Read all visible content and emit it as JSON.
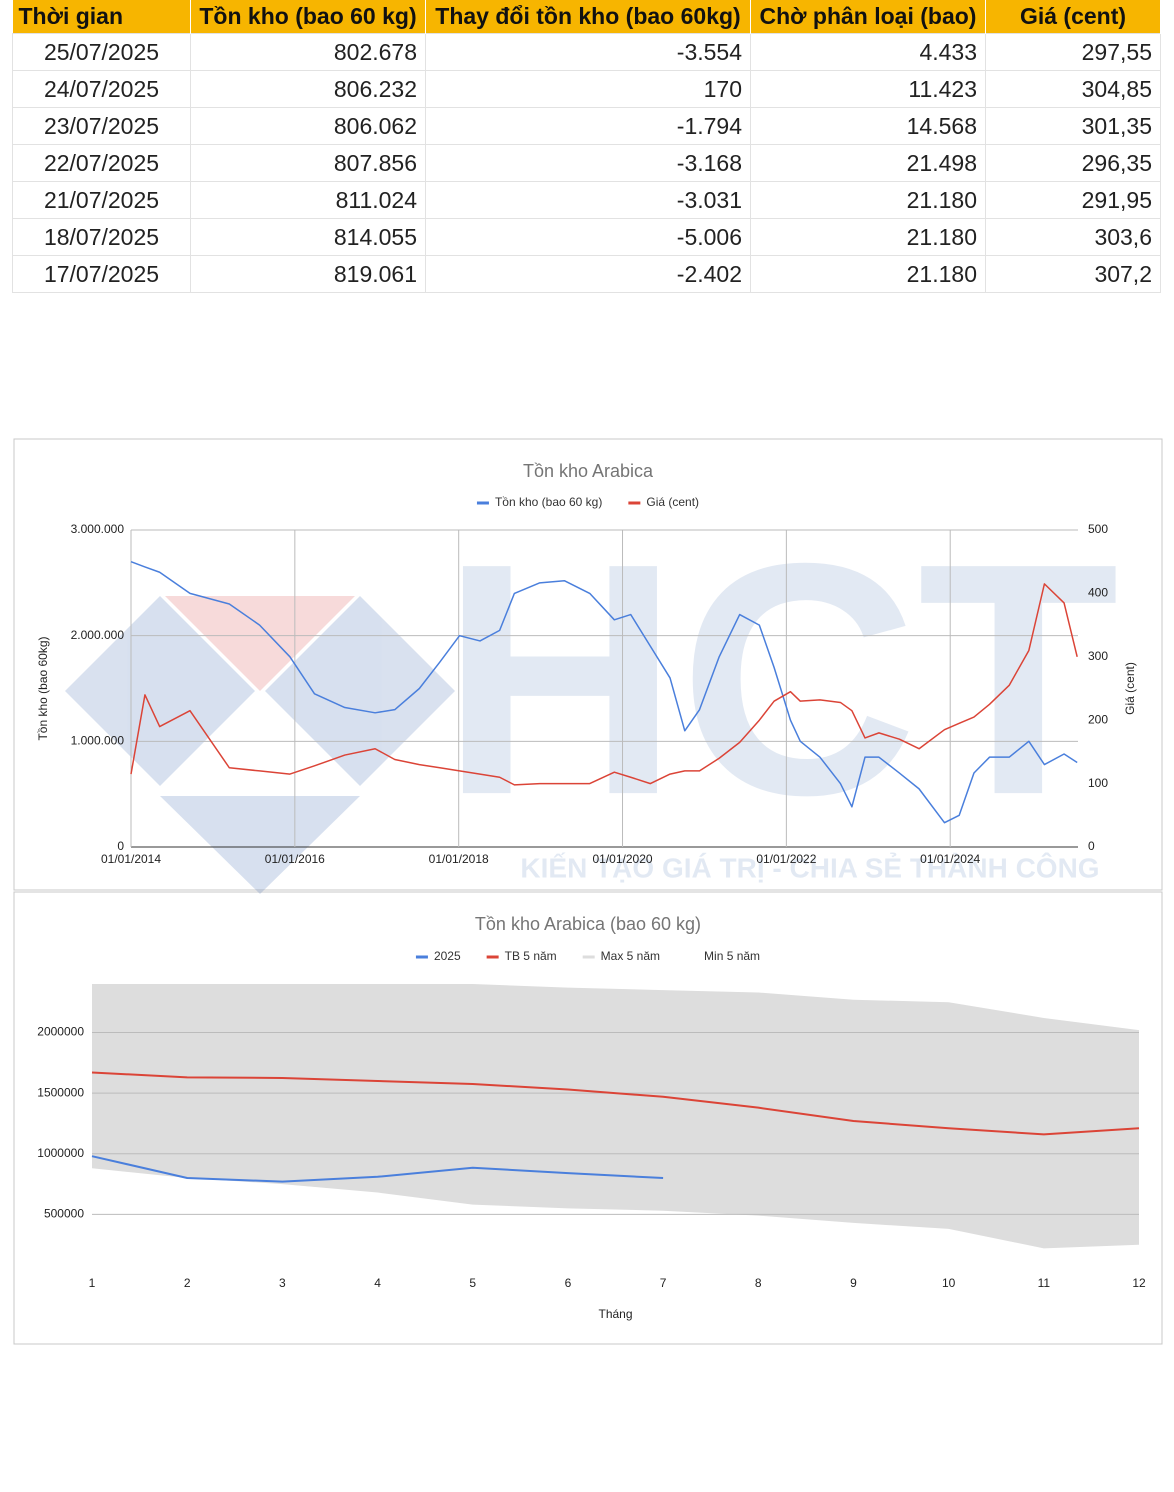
{
  "table": {
    "header": [
      "Thời gian",
      "Tồn kho (bao 60 kg)",
      "Thay đổi tồn kho (bao 60kg)",
      "Chờ phân loại (bao)",
      "Giá (cent)"
    ],
    "rows": [
      [
        "25/07/2025",
        "802.678",
        "-3.554",
        "4.433",
        "297,55"
      ],
      [
        "24/07/2025",
        "806.232",
        "170",
        "11.423",
        "304,85"
      ],
      [
        "23/07/2025",
        "806.062",
        "-1.794",
        "14.568",
        "301,35"
      ],
      [
        "22/07/2025",
        "807.856",
        "-3.168",
        "21.498",
        "296,35"
      ],
      [
        "21/07/2025",
        "811.024",
        "-3.031",
        "21.180",
        "291,95"
      ],
      [
        "18/07/2025",
        "814.055",
        "-5.006",
        "21.180",
        "303,6"
      ],
      [
        "17/07/2025",
        "819.061",
        "-2.402",
        "21.180",
        "307,2"
      ]
    ]
  },
  "watermark": {
    "logo": "HCT",
    "slogan": "KIẾN TẠO GIÁ TRỊ - CHIA SẺ THÀNH CÔNG"
  },
  "chart_data": [
    {
      "type": "line",
      "title": "Tồn kho Arabica",
      "y_label": "Tồn kho (bao 60kg)",
      "y2_label": "Giá (cent)",
      "legend": "top",
      "grid": "both",
      "x": [
        2014.0,
        2014.17,
        2014.35,
        2014.72,
        2015.2,
        2015.57,
        2015.94,
        2016.24,
        2016.61,
        2016.98,
        2017.22,
        2017.52,
        2017.77,
        2018.01,
        2018.26,
        2018.5,
        2018.68,
        2018.99,
        2019.29,
        2019.6,
        2019.9,
        2020.1,
        2020.34,
        2020.58,
        2020.76,
        2020.94,
        2021.18,
        2021.43,
        2021.67,
        2021.85,
        2022.05,
        2022.17,
        2022.41,
        2022.66,
        2022.8,
        2022.96,
        2023.13,
        2023.38,
        2023.62,
        2023.93,
        2024.11,
        2024.29,
        2024.48,
        2024.72,
        2024.96,
        2025.15,
        2025.39,
        2025.55
      ],
      "xlim": [
        2014,
        2025.56
      ],
      "xticks": [
        {
          "value": 2014,
          "label": "01/01/2014"
        },
        {
          "value": 2016,
          "label": "01/01/2016"
        },
        {
          "value": 2018,
          "label": "01/01/2018"
        },
        {
          "value": 2020,
          "label": "01/01/2020"
        },
        {
          "value": 2022,
          "label": "01/01/2022"
        },
        {
          "value": 2024,
          "label": "01/01/2024"
        }
      ],
      "ylim": [
        0,
        3000000
      ],
      "yticks": [
        0,
        {
          "value": 1000000,
          "label": "1.000.000"
        },
        {
          "value": 2000000,
          "label": "2.000.000"
        },
        {
          "value": 3000000,
          "label": "3.000.000"
        }
      ],
      "y2lim": [
        0,
        500
      ],
      "y2ticks": [
        0,
        100,
        200,
        300,
        400,
        500
      ],
      "series": [
        {
          "name": "Tồn kho (bao 60 kg)",
          "color": "#4a7fdc",
          "values": [
            2700000,
            2650000,
            2600000,
            2400000,
            2300000,
            2100000,
            1800000,
            1450000,
            1320000,
            1270000,
            1300000,
            1500000,
            1750000,
            2000000,
            1950000,
            2050000,
            2400000,
            2500000,
            2520000,
            2400000,
            2150000,
            2200000,
            1900000,
            1600000,
            1100000,
            1300000,
            1800000,
            2200000,
            2100000,
            1700000,
            1200000,
            1000000,
            850000,
            600000,
            380000,
            850000,
            850000,
            700000,
            550000,
            230000,
            300000,
            700000,
            850000,
            850000,
            1000000,
            780000,
            880000,
            800000
          ]
        },
        {
          "name": "Giá (cent)",
          "color": "#db4437",
          "axis": "y2",
          "values": [
            115,
            240,
            190,
            215,
            125,
            120,
            115,
            128,
            145,
            155,
            138,
            130,
            125,
            120,
            115,
            110,
            98,
            100,
            100,
            100,
            118,
            110,
            100,
            115,
            120,
            120,
            140,
            165,
            200,
            230,
            245,
            230,
            232,
            228,
            215,
            172,
            180,
            170,
            155,
            185,
            195,
            205,
            225,
            255,
            310,
            415,
            385,
            300
          ]
        }
      ]
    },
    {
      "type": "line",
      "title": "Tồn kho Arabica (bao 60 kg)",
      "x_label": "Tháng",
      "legend": "top",
      "grid": "y",
      "x": [
        1,
        2,
        3,
        4,
        5,
        6,
        7,
        8,
        9,
        10,
        11,
        12
      ],
      "xlim": [
        1,
        12
      ],
      "xticks": [
        1,
        2,
        3,
        4,
        5,
        6,
        7,
        8,
        9,
        10,
        11,
        12
      ],
      "ylim": [
        0,
        2400000
      ],
      "yticks": [
        500000,
        1000000,
        1500000,
        2000000
      ],
      "series": [
        {
          "name": "2025",
          "color": "#4a7fdc",
          "values": [
            980000,
            800000,
            770000,
            810000,
            885000,
            840000,
            800000,
            null,
            null,
            null,
            null,
            null
          ]
        },
        {
          "name": "TB 5 năm",
          "color": "#db4437",
          "values": [
            1670000,
            1630000,
            1625000,
            1600000,
            1575000,
            1530000,
            1470000,
            1380000,
            1270000,
            1210000,
            1160000,
            1210000
          ]
        },
        {
          "name": "Max 5 năm",
          "color": "#dddddd",
          "area": true,
          "values": [
            2400000,
            2400000,
            2400000,
            2400000,
            2400000,
            2370000,
            2350000,
            2330000,
            2270000,
            2250000,
            2120000,
            2020000
          ]
        },
        {
          "name": "Min 5 năm",
          "color": "#ffffff",
          "area": true,
          "values": [
            880000,
            800000,
            750000,
            680000,
            580000,
            550000,
            530000,
            490000,
            430000,
            380000,
            220000,
            250000
          ]
        }
      ]
    }
  ]
}
